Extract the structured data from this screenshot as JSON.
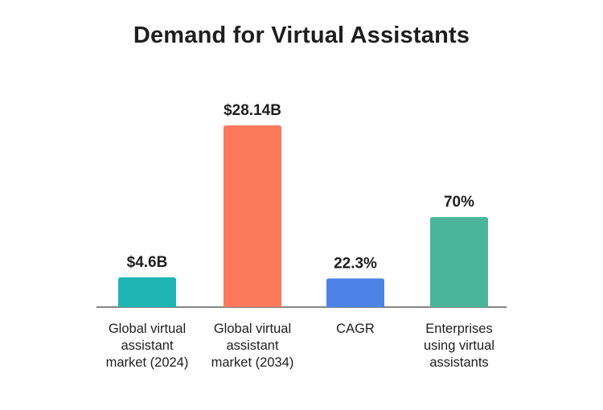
{
  "chart_data": {
    "type": "bar",
    "title": "Demand for Virtual Assistants",
    "categories": [
      [
        "Global virtual",
        "assistant",
        "market (2024)"
      ],
      [
        "Global virtual",
        "assistant",
        "market (2034)"
      ],
      [
        "CAGR"
      ],
      [
        "Enterprises",
        "using virtual",
        "assistants"
      ]
    ],
    "value_labels": [
      "$4.6B",
      "$28.14B",
      "22.3%",
      "70%"
    ],
    "values": [
      4.6,
      28.14,
      22.3,
      70
    ],
    "units": [
      "USD billions",
      "USD billions",
      "percent",
      "percent"
    ],
    "colors": [
      "#1fb5b5",
      "#fb7a5c",
      "#4d82e6",
      "#4cb49a"
    ],
    "grid": false,
    "legend": "none"
  }
}
